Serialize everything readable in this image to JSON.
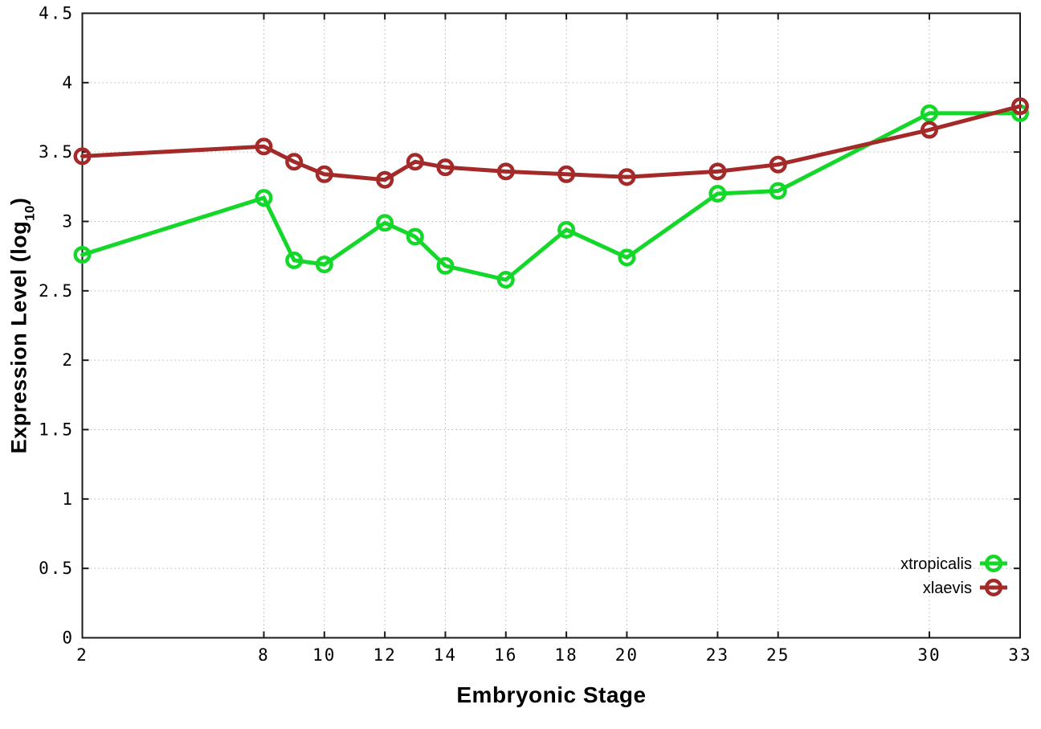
{
  "chart_data": {
    "type": "line",
    "title": "",
    "xlabel": "Embryonic Stage",
    "ylabel": {
      "prefix": "Expression Level (log",
      "sub": "10",
      "suffix": ")"
    },
    "x": [
      2,
      8,
      9,
      10,
      12,
      13,
      14,
      16,
      18,
      20,
      23,
      25,
      30,
      33
    ],
    "series": [
      {
        "name": "xtropicalis",
        "color": "#14d829",
        "values": [
          2.76,
          3.17,
          2.72,
          2.69,
          2.99,
          2.89,
          2.68,
          2.58,
          2.94,
          2.74,
          3.2,
          3.22,
          3.78,
          3.78
        ]
      },
      {
        "name": "xlaevis",
        "color": "#a42a2a",
        "values": [
          3.47,
          3.54,
          3.43,
          3.34,
          3.3,
          3.43,
          3.39,
          3.36,
          3.34,
          3.32,
          3.36,
          3.41,
          3.66,
          3.83
        ]
      }
    ],
    "xlim": [
      2,
      33
    ],
    "ylim": [
      0,
      4.5
    ],
    "xticks": {
      "values": [
        2,
        8,
        10,
        12,
        14,
        16,
        18,
        20,
        23,
        25,
        30,
        33
      ],
      "labels": [
        "2",
        "8",
        "10",
        "12",
        "14",
        "16",
        "18",
        "20",
        "23",
        "25",
        "30",
        "33"
      ]
    },
    "yticks": {
      "values": [
        0,
        0.5,
        1,
        1.5,
        2,
        2.5,
        3,
        3.5,
        4,
        4.5
      ],
      "labels": [
        "0",
        "0.5",
        "1",
        "1.5",
        "2",
        "2.5",
        "3",
        "3.5",
        "4",
        "4.5"
      ]
    },
    "grid": true,
    "legend_position": "bottom-right"
  },
  "colors": {
    "background": "#ffffff",
    "border": "#1a1a1a",
    "grid": "#b5b5b5",
    "text": "#000000"
  }
}
